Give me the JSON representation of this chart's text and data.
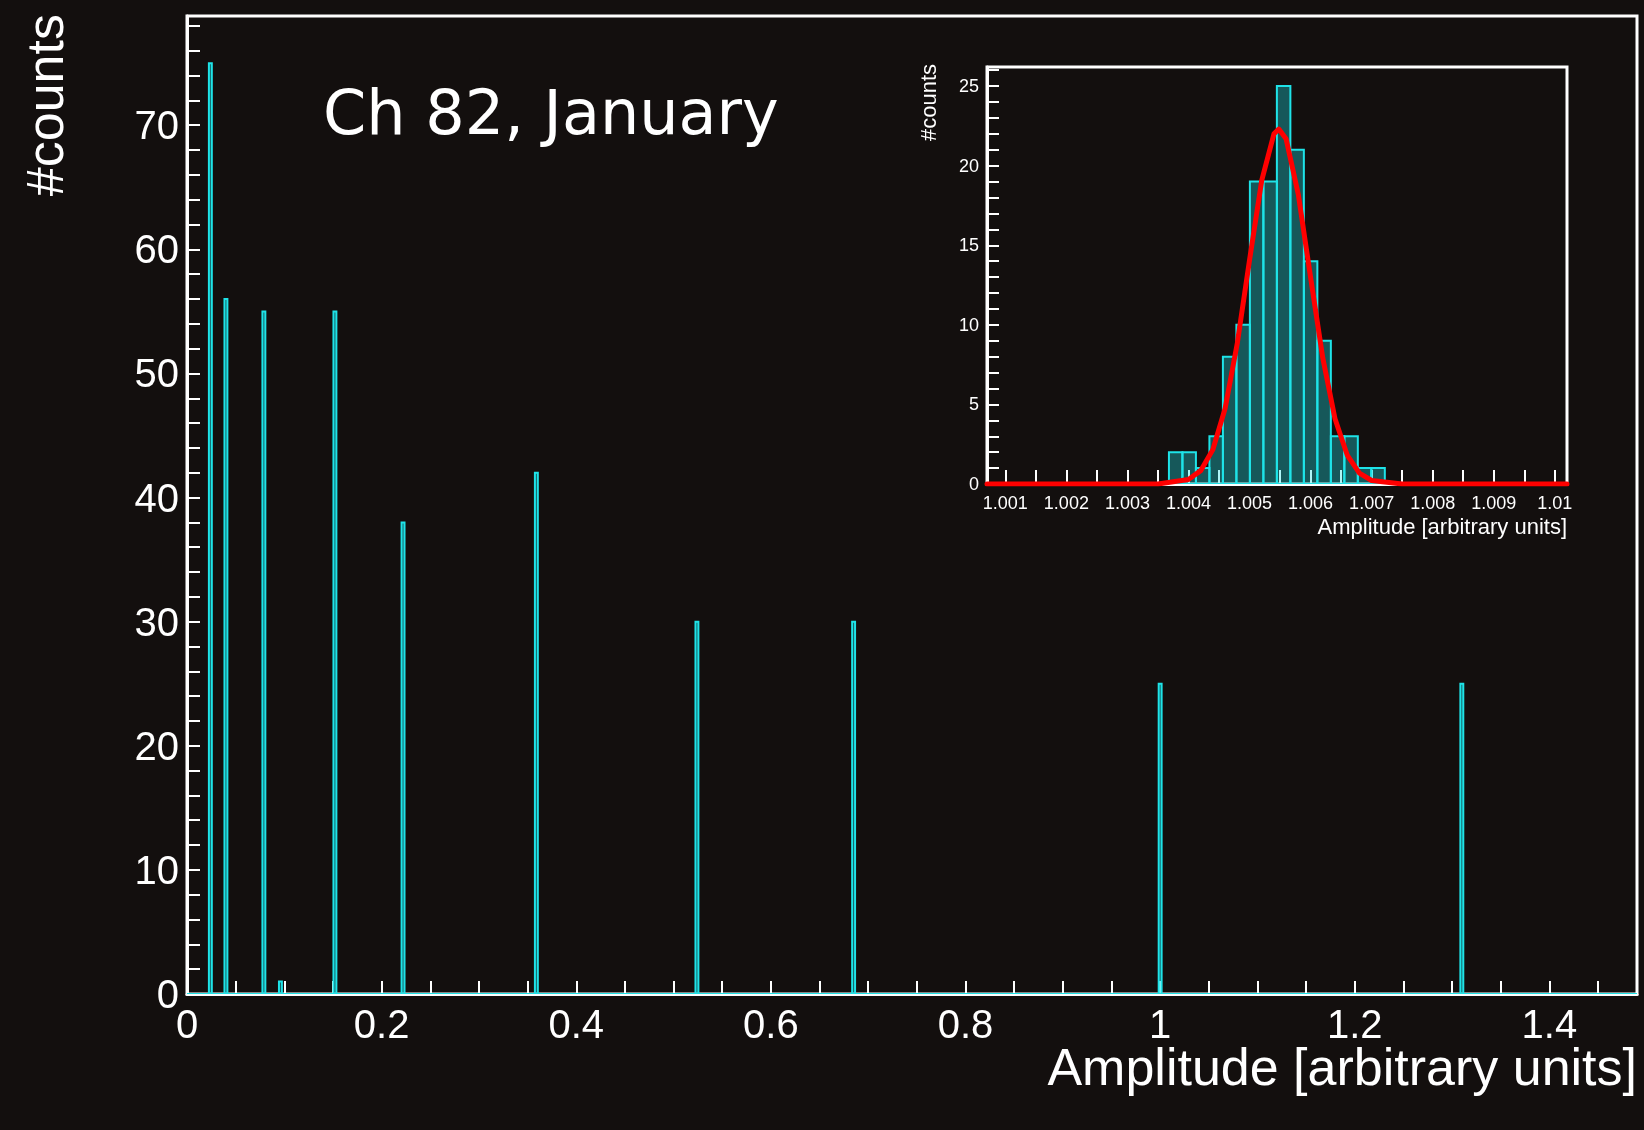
{
  "chart_data": [
    {
      "type": "histogram",
      "title": "Ch 82, January",
      "xlabel": "Amplitude [arbitrary units]",
      "ylabel": "#counts",
      "bins": [
        0,
        0.0225,
        0.0255,
        0.0385,
        0.0415,
        0.0775,
        0.0805,
        0.0945,
        0.0975,
        0.1505,
        0.1535,
        0.2205,
        0.2235,
        0.3575,
        0.3605,
        0.5225,
        0.5255,
        0.6835,
        0.6865,
        0.9985,
        1.0015,
        1.3085,
        1.3115,
        1.49
      ],
      "values": [
        0,
        75,
        0,
        56,
        0,
        55,
        0,
        1,
        0,
        55,
        0,
        38,
        0,
        42,
        0,
        30,
        0,
        30,
        0,
        25,
        0,
        25,
        0
      ],
      "color": "#1ee3e8",
      "xlim": [
        0,
        1.49
      ],
      "ylim": [
        0,
        78.8
      ],
      "xticks": [
        0,
        {
          "value": 0.05,
          "label": null
        },
        {
          "value": 0.1,
          "label": null
        },
        {
          "value": 0.15,
          "label": null
        },
        0.2,
        {
          "value": 0.25,
          "label": null
        },
        {
          "value": 0.3,
          "label": null
        },
        {
          "value": 0.35,
          "label": null
        },
        0.4,
        {
          "value": 0.45,
          "label": null
        },
        {
          "value": 0.5,
          "label": null
        },
        {
          "value": 0.55,
          "label": null
        },
        0.6,
        {
          "value": 0.65,
          "label": null
        },
        {
          "value": 0.7,
          "label": null
        },
        {
          "value": 0.75,
          "label": null
        },
        0.8,
        {
          "value": 0.85,
          "label": null
        },
        {
          "value": 0.9,
          "label": null
        },
        {
          "value": 0.95,
          "label": null
        },
        1,
        {
          "value": 1.05,
          "label": null
        },
        {
          "value": 1.1,
          "label": null
        },
        {
          "value": 1.15,
          "label": null
        },
        1.2,
        {
          "value": 1.25,
          "label": null
        },
        {
          "value": 1.3,
          "label": null
        },
        {
          "value": 1.35,
          "label": null
        },
        1.4,
        {
          "value": 1.45,
          "label": null
        }
      ],
      "yticks": [
        0,
        {
          "value": 2,
          "label": null
        },
        {
          "value": 4,
          "label": null
        },
        {
          "value": 6,
          "label": null
        },
        {
          "value": 8,
          "label": null
        },
        10,
        {
          "value": 12,
          "label": null
        },
        {
          "value": 14,
          "label": null
        },
        {
          "value": 16,
          "label": null
        },
        {
          "value": 18,
          "label": null
        },
        20,
        {
          "value": 22,
          "label": null
        },
        {
          "value": 24,
          "label": null
        },
        {
          "value": 26,
          "label": null
        },
        {
          "value": 28,
          "label": null
        },
        30,
        {
          "value": 32,
          "label": null
        },
        {
          "value": 34,
          "label": null
        },
        {
          "value": 36,
          "label": null
        },
        {
          "value": 38,
          "label": null
        },
        40,
        {
          "value": 42,
          "label": null
        },
        {
          "value": 44,
          "label": null
        },
        {
          "value": 46,
          "label": null
        },
        {
          "value": 48,
          "label": null
        },
        50,
        {
          "value": 52,
          "label": null
        },
        {
          "value": 54,
          "label": null
        },
        {
          "value": 56,
          "label": null
        },
        {
          "value": 58,
          "label": null
        },
        60,
        {
          "value": 62,
          "label": null
        },
        {
          "value": 64,
          "label": null
        },
        {
          "value": 66,
          "label": null
        },
        {
          "value": 68,
          "label": null
        },
        70,
        {
          "value": 72,
          "label": null
        },
        {
          "value": 74,
          "label": null
        },
        {
          "value": 76,
          "label": null
        },
        {
          "value": 78,
          "label": null
        }
      ]
    },
    {
      "type": "histogram",
      "xlabel": "Amplitude [arbitrary units]",
      "ylabel": "#counts",
      "bins": [
        1.00368,
        1.003901,
        1.004122,
        1.004343,
        1.004564,
        1.004785,
        1.005006,
        1.005227,
        1.005448,
        1.005669,
        1.00589,
        1.006111,
        1.006332,
        1.006553,
        1.006774,
        1.006995,
        1.007216
      ],
      "series": [
        {
          "color": "#1ee3e8",
          "values": [
            2,
            2,
            1,
            3,
            8,
            10,
            19,
            19,
            25,
            21,
            14,
            9,
            3,
            3,
            1,
            1
          ]
        },
        {
          "type": "line",
          "color": "#ff0000",
          "x": [
            1.0007,
            1.0035,
            1.004,
            1.0042,
            1.0044,
            1.0046,
            1.0048,
            1.005,
            1.0052,
            1.0054,
            1.00548,
            1.0056,
            1.0058,
            1.006,
            1.0062,
            1.0064,
            1.0066,
            1.0068,
            1.007,
            1.0075,
            1.0102
          ],
          "values": [
            0,
            0,
            0.28,
            0.84,
            2.17,
            4.74,
            8.85,
            14.07,
            19.07,
            22,
            22.3,
            21.67,
            18.17,
            12.98,
            7.91,
            4.1,
            1.82,
            0.68,
            0.22,
            0,
            0
          ]
        }
      ],
      "xlim": [
        1.0007,
        1.0102
      ],
      "ylim": [
        0,
        26.2
      ],
      "xticks": [
        1.001,
        {
          "value": 1.0015,
          "label": null
        },
        1.002,
        {
          "value": 1.0025,
          "label": null
        },
        1.003,
        {
          "value": 1.0035,
          "label": null
        },
        1.004,
        {
          "value": 1.0045,
          "label": null
        },
        1.005,
        {
          "value": 1.0055,
          "label": null
        },
        1.006,
        {
          "value": 1.0065,
          "label": null
        },
        1.007,
        {
          "value": 1.0075,
          "label": null
        },
        1.008,
        {
          "value": 1.0085,
          "label": null
        },
        1.009,
        {
          "value": 1.0095,
          "label": null
        },
        1.01
      ],
      "yticks": [
        0,
        {
          "value": 1,
          "label": null
        },
        {
          "value": 2,
          "label": null
        },
        {
          "value": 3,
          "label": null
        },
        {
          "value": 4,
          "label": null
        },
        5,
        {
          "value": 6,
          "label": null
        },
        {
          "value": 7,
          "label": null
        },
        {
          "value": 8,
          "label": null
        },
        {
          "value": 9,
          "label": null
        },
        10,
        {
          "value": 11,
          "label": null
        },
        {
          "value": 12,
          "label": null
        },
        {
          "value": 13,
          "label": null
        },
        {
          "value": 14,
          "label": null
        },
        15,
        {
          "value": 16,
          "label": null
        },
        {
          "value": 17,
          "label": null
        },
        {
          "value": 18,
          "label": null
        },
        {
          "value": 19,
          "label": null
        },
        20,
        {
          "value": 21,
          "label": null
        },
        {
          "value": 22,
          "label": null
        },
        {
          "value": 23,
          "label": null
        },
        {
          "value": 24,
          "label": null
        },
        25,
        {
          "value": 26,
          "label": null
        }
      ]
    }
  ]
}
